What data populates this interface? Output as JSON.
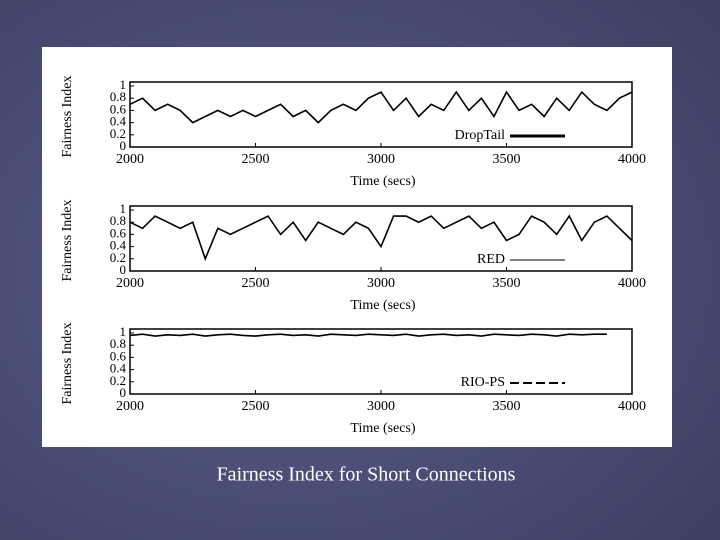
{
  "caption": "Fairness Index for Short Connections",
  "chart_data": [
    {
      "type": "line",
      "ylabel": "Fairness Index",
      "xlabel": "Time (secs)",
      "xlim": [
        2000,
        4000
      ],
      "xticks": [
        2000,
        2500,
        3000,
        3500,
        4000
      ],
      "ylim": [
        0,
        1
      ],
      "yticks": [
        0,
        0.2,
        0.4,
        0.6,
        0.8,
        1
      ],
      "legend": "lower right",
      "x": [
        2000,
        2050,
        2100,
        2150,
        2200,
        2250,
        2300,
        2350,
        2400,
        2450,
        2500,
        2550,
        2600,
        2650,
        2700,
        2750,
        2800,
        2850,
        2900,
        2950,
        3000,
        3050,
        3100,
        3150,
        3200,
        3250,
        3300,
        3350,
        3400,
        3450,
        3500,
        3550,
        3600,
        3650,
        3700,
        3750,
        3800,
        3850,
        3900,
        3950,
        4000
      ],
      "series": [
        {
          "name": "DropTail",
          "color": "#000000",
          "dash": "solid",
          "values": [
            0.7,
            0.8,
            0.6,
            0.7,
            0.6,
            0.4,
            0.5,
            0.6,
            0.5,
            0.6,
            0.5,
            0.6,
            0.7,
            0.5,
            0.6,
            0.4,
            0.6,
            0.7,
            0.6,
            0.8,
            0.9,
            0.6,
            0.8,
            0.5,
            0.7,
            0.6,
            0.9,
            0.6,
            0.8,
            0.5,
            0.9,
            0.6,
            0.7,
            0.5,
            0.8,
            0.6,
            0.9,
            0.7,
            0.6,
            0.8,
            0.9
          ]
        }
      ]
    },
    {
      "type": "line",
      "ylabel": "Fairness Index",
      "xlabel": "Time (secs)",
      "xlim": [
        2000,
        4000
      ],
      "xticks": [
        2000,
        2500,
        3000,
        3500,
        4000
      ],
      "ylim": [
        0,
        1
      ],
      "yticks": [
        0,
        0.2,
        0.4,
        0.6,
        0.8,
        1
      ],
      "legend": "lower right",
      "x": [
        2000,
        2050,
        2100,
        2150,
        2200,
        2250,
        2300,
        2350,
        2400,
        2450,
        2500,
        2550,
        2600,
        2650,
        2700,
        2750,
        2800,
        2850,
        2900,
        2950,
        3000,
        3050,
        3100,
        3150,
        3200,
        3250,
        3300,
        3350,
        3400,
        3450,
        3500,
        3550,
        3600,
        3650,
        3700,
        3750,
        3800,
        3850,
        3900,
        3950,
        4000
      ],
      "series": [
        {
          "name": "RED",
          "color": "#000000",
          "dash": "thin",
          "values": [
            0.8,
            0.7,
            0.9,
            0.8,
            0.7,
            0.8,
            0.2,
            0.7,
            0.6,
            0.7,
            0.8,
            0.9,
            0.6,
            0.8,
            0.5,
            0.8,
            0.7,
            0.6,
            0.8,
            0.7,
            0.4,
            0.9,
            0.9,
            0.8,
            0.9,
            0.7,
            0.8,
            0.9,
            0.7,
            0.8,
            0.5,
            0.6,
            0.9,
            0.8,
            0.6,
            0.9,
            0.5,
            0.8,
            0.9,
            0.7,
            0.5
          ]
        }
      ]
    },
    {
      "type": "line",
      "ylabel": "Fairness Index",
      "xlabel": "Time (secs)",
      "xlim": [
        2000,
        4000
      ],
      "xticks": [
        2000,
        2500,
        3000,
        3500,
        4000
      ],
      "ylim": [
        0,
        1
      ],
      "yticks": [
        0,
        0.2,
        0.4,
        0.6,
        0.8,
        1
      ],
      "legend": "lower right",
      "x": [
        2000,
        2050,
        2100,
        2150,
        2200,
        2250,
        2300,
        2350,
        2400,
        2450,
        2500,
        2550,
        2600,
        2650,
        2700,
        2750,
        2800,
        2850,
        2900,
        2950,
        3000,
        3050,
        3100,
        3150,
        3200,
        3250,
        3300,
        3350,
        3400,
        3450,
        3500,
        3550,
        3600,
        3650,
        3700,
        3750,
        3800,
        3850,
        3900,
        3950,
        4000
      ],
      "series": [
        {
          "name": "RIO-PS",
          "color": "#000000",
          "dash": "dashed",
          "values": [
            0.96,
            0.98,
            0.95,
            0.97,
            0.96,
            0.98,
            0.95,
            0.97,
            0.98,
            0.96,
            0.95,
            0.97,
            0.98,
            0.96,
            0.97,
            0.95,
            0.98,
            0.97,
            0.96,
            0.98,
            0.97,
            0.96,
            0.98,
            0.95,
            0.97,
            0.98,
            0.96,
            0.97,
            0.95,
            0.98,
            0.97,
            0.96,
            0.98,
            0.97,
            0.95,
            0.98,
            0.97,
            0.98,
            0.98,
            null,
            null
          ]
        }
      ]
    }
  ]
}
